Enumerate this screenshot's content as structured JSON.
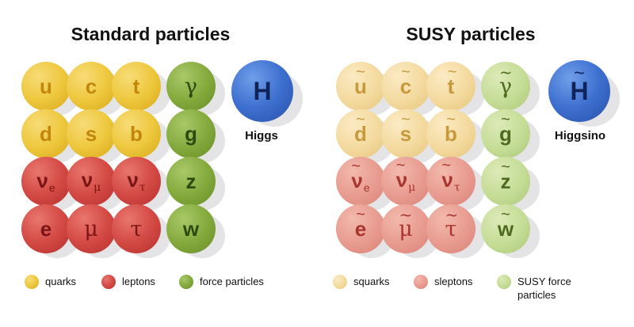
{
  "standard": {
    "title": "Standard particles",
    "balls": {
      "u": "u",
      "c": "c",
      "t": "t",
      "gamma": "γ",
      "d": "d",
      "s": "s",
      "b": "b",
      "g": "g",
      "nu": "ν",
      "e_sub": "e",
      "mu_sub": "μ",
      "tau_sub": "τ",
      "z": "z",
      "e": "e",
      "mu": "μ",
      "tau": "τ",
      "w": "w",
      "higgs": "H"
    },
    "higgs_label": "Higgs"
  },
  "susy": {
    "title": "SUSY particles",
    "tilde": "~",
    "higgs_label": "Higgsino"
  },
  "legend": {
    "standard": [
      "quarks",
      "leptons",
      "force particles"
    ],
    "susy": [
      "squarks",
      "sleptons",
      "SUSY force particles"
    ]
  },
  "colors": {
    "quark": "#eec83e",
    "lepton": "#d44a44",
    "force": "#85ab3e",
    "higgs": "#3d6fd0",
    "squark": "#f3d99d",
    "slepton": "#e89a8e",
    "susy_force": "#c4dc95"
  }
}
